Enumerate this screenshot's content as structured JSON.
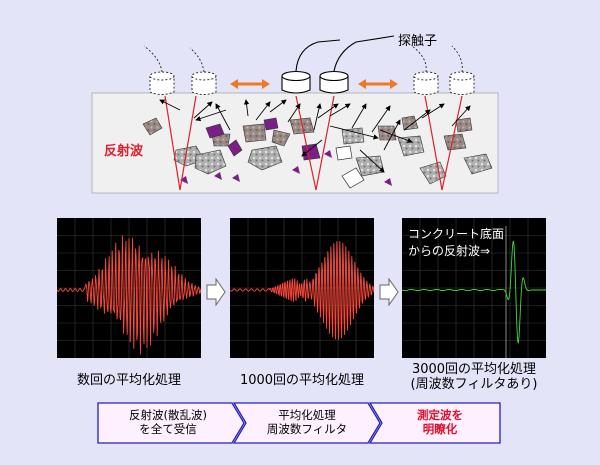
{
  "labels": {
    "probe": "探触子",
    "reflected_wave": "反射波"
  },
  "scopes": [
    {
      "caption": "数回の平均化処理",
      "trace_color": "#ff4a3a"
    },
    {
      "caption": "1000回の平均化処理",
      "trace_color": "#ff4a3a"
    },
    {
      "caption_line1": "3000回の平均化処理",
      "caption_line2": "(周波数フィルタあり)",
      "trace_color": "#3fdc3f",
      "note_line1": "コンクリート底面",
      "note_line2": "からの反射波⇒"
    }
  ],
  "flow": [
    {
      "line1": "反射波(散乱波)",
      "line2": "を全て受信"
    },
    {
      "line1": "平均化処理",
      "line2": "周波数フィルタ"
    },
    {
      "line1": "測定波を",
      "line2": "明瞭化"
    }
  ],
  "colors": {
    "background": "#e4e4f8",
    "concrete": "#f0f0f0",
    "ray_red": "#e0202a",
    "arrow_orange": "#f07820",
    "flow_fill": "#fff0ff",
    "flow_border": "#2020c0",
    "emphasis_red": "#e0102a"
  }
}
